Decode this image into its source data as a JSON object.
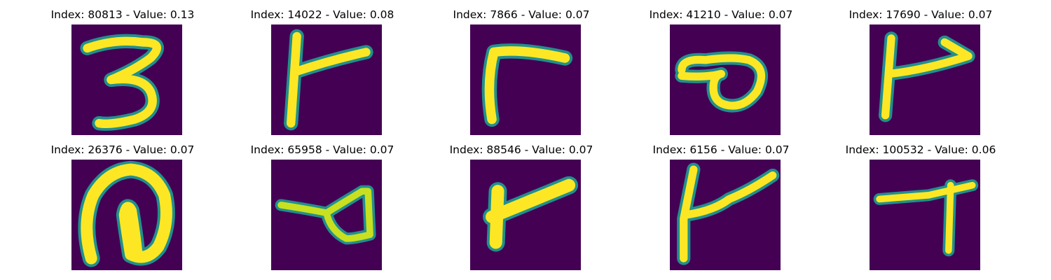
{
  "colors": {
    "background": "#440154",
    "edge": "#21908d",
    "stroke": "#fde725"
  },
  "panels": [
    {
      "title": "Index: 80813 - Value: 0.13",
      "glyph": "digit-three"
    },
    {
      "title": "Index: 14022 - Value: 0.08",
      "glyph": "hook-shape"
    },
    {
      "title": "Index: 7866 - Value: 0.07",
      "glyph": "bent-stroke"
    },
    {
      "title": "Index: 41210 - Value: 0.07",
      "glyph": "loop-shape"
    },
    {
      "title": "Index: 17690 - Value: 0.07",
      "glyph": "flag-shape"
    },
    {
      "title": "Index: 26376 - Value: 0.07",
      "glyph": "nested-loop"
    },
    {
      "title": "Index: 65958 - Value: 0.07",
      "glyph": "triangle-loop"
    },
    {
      "title": "Index: 88546 - Value: 0.07",
      "glyph": "diagonal-bar"
    },
    {
      "title": "Index: 6156 - Value: 0.07",
      "glyph": "hook-shape"
    },
    {
      "title": "Index: 100532 - Value: 0.06",
      "glyph": "t-shape"
    }
  ]
}
